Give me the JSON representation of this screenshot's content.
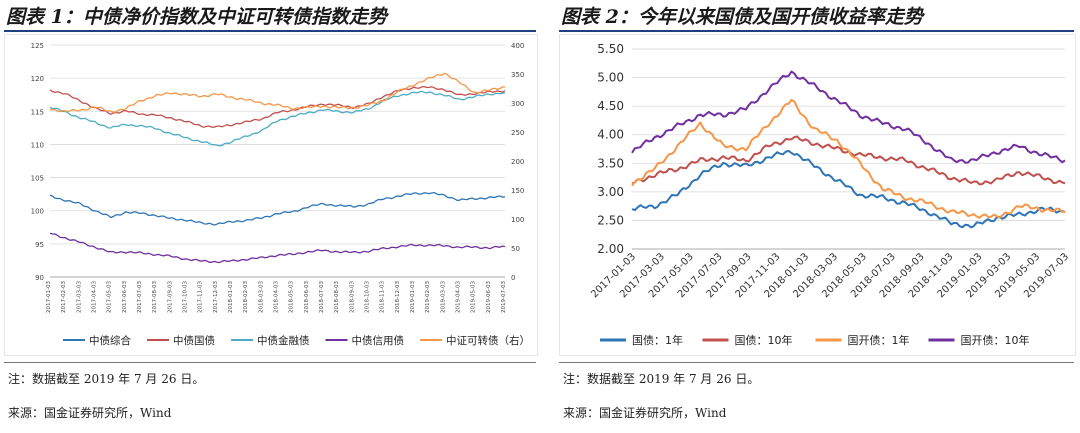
{
  "left": {
    "title": "图表 1：中债净价指数及中证可转债指数走势",
    "note": "注：数据截至 2019 年 7 月 26 日。",
    "source": "来源：国金证券研究所，Wind",
    "chart_data": {
      "type": "line",
      "title": "",
      "x_tick_labels": [
        "2017-01-03",
        "2017-02-03",
        "2017-03-03",
        "2017-04-03",
        "2017-05-03",
        "2017-06-03",
        "2017-07-03",
        "2017-08-03",
        "2017-09-03",
        "2017-10-03",
        "2017-11-03",
        "2017-12-03",
        "2018-01-03",
        "2018-02-03",
        "2018-03-03",
        "2018-04-03",
        "2018-05-03",
        "2018-06-03",
        "2018-07-03",
        "2018-08-03",
        "2018-09-03",
        "2018-10-03",
        "2018-11-03",
        "2018-12-03",
        "2019-01-03",
        "2019-02-03",
        "2019-03-03",
        "2019-04-03",
        "2019-05-03",
        "2019-06-03",
        "2019-07-03"
      ],
      "y_left_ticks": [
        90,
        95,
        100,
        105,
        110,
        115,
        120,
        125
      ],
      "y_right_ticks": [
        0,
        50,
        100,
        150,
        200,
        250,
        300,
        350,
        400
      ],
      "ylim_left": [
        90,
        125
      ],
      "ylim_right": [
        0,
        400
      ],
      "grid": true,
      "legend_position": "bottom",
      "series": [
        {
          "name": "中债综合",
          "axis": "left",
          "color": "#2e75b6",
          "values": [
            102.2,
            101.6,
            101.0,
            100.0,
            99.0,
            99.8,
            99.6,
            99.3,
            98.8,
            98.6,
            98.1,
            98.0,
            98.3,
            98.6,
            98.9,
            99.6,
            99.8,
            100.6,
            101.0,
            100.8,
            100.6,
            101.0,
            101.8,
            102.2,
            102.6,
            102.7,
            102.3,
            101.6,
            101.8,
            102.0,
            102.1
          ]
        },
        {
          "name": "中债国债",
          "axis": "left",
          "color": "#c0504d",
          "values": [
            118.2,
            117.6,
            116.6,
            115.4,
            114.7,
            115.0,
            114.6,
            114.4,
            114.0,
            113.4,
            112.8,
            112.6,
            113.0,
            113.4,
            113.9,
            114.8,
            115.2,
            115.7,
            116.1,
            115.9,
            115.6,
            116.1,
            117.3,
            118.1,
            118.6,
            118.6,
            118.3,
            117.4,
            117.7,
            117.9,
            118.1
          ]
        },
        {
          "name": "中债金融债",
          "axis": "left",
          "color": "#4bacc6",
          "values": [
            115.6,
            114.9,
            114.0,
            113.3,
            112.5,
            113.0,
            112.8,
            112.4,
            111.6,
            111.0,
            110.4,
            109.8,
            110.4,
            111.3,
            112.1,
            113.6,
            114.2,
            114.8,
            115.2,
            115.0,
            114.8,
            115.4,
            116.6,
            117.4,
            117.8,
            117.9,
            117.4,
            116.8,
            117.2,
            117.6,
            117.8
          ]
        },
        {
          "name": "中债信用债",
          "axis": "left",
          "color": "#7030a0",
          "values": [
            96.6,
            95.9,
            95.2,
            94.5,
            93.7,
            93.8,
            93.6,
            93.4,
            93.1,
            92.7,
            92.4,
            92.3,
            92.4,
            92.7,
            92.9,
            93.3,
            93.4,
            93.8,
            94.0,
            93.8,
            93.7,
            93.9,
            94.3,
            94.6,
            94.8,
            94.8,
            94.7,
            94.5,
            94.5,
            94.4,
            94.6
          ]
        },
        {
          "name": "中证可转债（右）",
          "axis": "right",
          "color": "#f79646",
          "values": [
            290,
            285,
            288,
            293,
            285,
            290,
            305,
            312,
            318,
            314,
            312,
            315,
            310,
            305,
            300,
            296,
            291,
            292,
            295,
            292,
            292,
            296,
            305,
            320,
            332,
            342,
            352,
            335,
            318,
            322,
            328
          ]
        }
      ]
    }
  },
  "right": {
    "title": "图表 2：今年以来国债及国开债收益率走势",
    "note": "注：数据截至 2019 年 7 月 26 日。",
    "source": "来源：国金证券研究所，Wind",
    "chart_data": {
      "type": "line",
      "title": "",
      "x_tick_labels": [
        "2017-01-03",
        "2017-03-03",
        "2017-05-03",
        "2017-07-03",
        "2017-09-03",
        "2017-11-03",
        "2018-01-03",
        "2018-03-03",
        "2018-05-03",
        "2018-07-03",
        "2018-09-03",
        "2018-11-03",
        "2019-01-03",
        "2019-03-03",
        "2019-05-03",
        "2019-07-03"
      ],
      "y_ticks": [
        "2.00",
        "2.50",
        "3.00",
        "3.50",
        "4.00",
        "4.50",
        "5.00",
        "5.50"
      ],
      "ylim": [
        2.0,
        5.5
      ],
      "grid": true,
      "legend_position": "bottom",
      "series": [
        {
          "name": "国债：1年",
          "color": "#2e75b6",
          "values": [
            2.7,
            2.75,
            2.95,
            3.3,
            3.5,
            3.45,
            3.6,
            3.72,
            3.45,
            3.2,
            2.95,
            2.9,
            2.8,
            2.65,
            2.45,
            2.4,
            2.55,
            2.6,
            2.7,
            2.65
          ]
        },
        {
          "name": "国债：10年",
          "color": "#c0504d",
          "values": [
            3.15,
            3.3,
            3.4,
            3.55,
            3.6,
            3.55,
            3.8,
            3.95,
            3.85,
            3.75,
            3.65,
            3.6,
            3.55,
            3.4,
            3.25,
            3.15,
            3.2,
            3.35,
            3.25,
            3.15
          ]
        },
        {
          "name": "国开债：1年",
          "color": "#f79646",
          "values": [
            3.15,
            3.4,
            3.8,
            4.2,
            3.8,
            3.75,
            4.2,
            4.6,
            4.1,
            3.9,
            3.5,
            3.05,
            2.9,
            2.8,
            2.65,
            2.6,
            2.55,
            2.75,
            2.7,
            2.65
          ]
        },
        {
          "name": "国开债：10年",
          "color": "#7030a0",
          "values": [
            3.7,
            3.95,
            4.15,
            4.35,
            4.35,
            4.45,
            4.8,
            5.1,
            4.85,
            4.6,
            4.35,
            4.2,
            4.1,
            3.85,
            3.55,
            3.55,
            3.7,
            3.8,
            3.65,
            3.55
          ]
        }
      ]
    }
  }
}
